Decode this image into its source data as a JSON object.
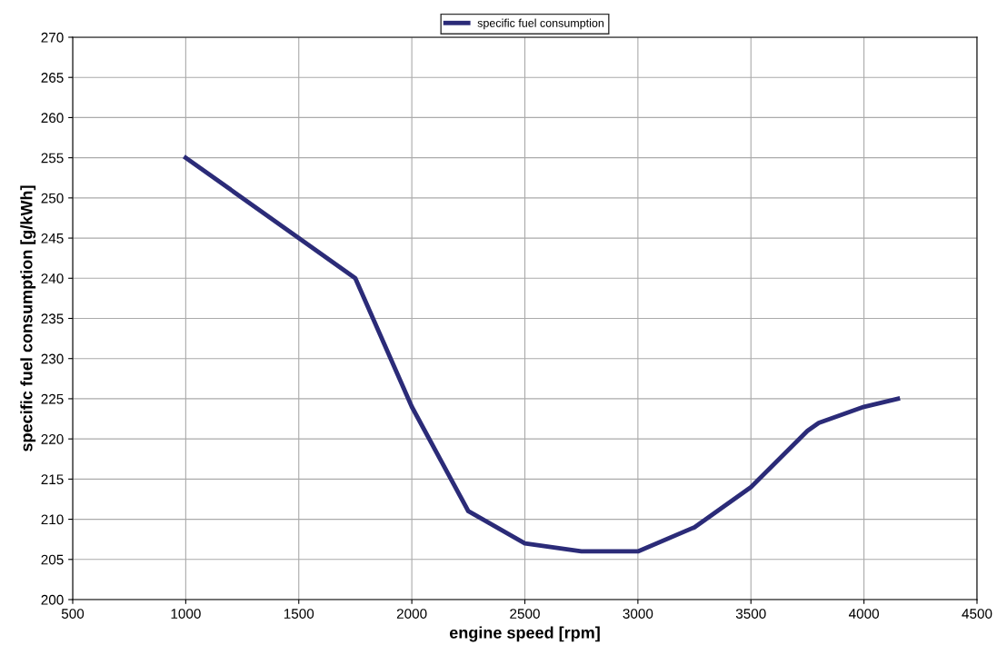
{
  "chart_data": {
    "type": "line",
    "xlabel": "engine speed [rpm]",
    "ylabel": "specific fuel consumption [g/kWh]",
    "x": [
      1000,
      1750,
      2000,
      2250,
      2500,
      2750,
      3000,
      3250,
      3500,
      3750,
      3800,
      4000,
      4150
    ],
    "series": [
      {
        "name": "specific fuel consumption",
        "color": "#2b2b78",
        "values": [
          255,
          240,
          224,
          211,
          207,
          206,
          206,
          209,
          214,
          221,
          222,
          224,
          225
        ]
      }
    ],
    "xlim": [
      500,
      4500
    ],
    "xticks": [
      500,
      1000,
      1500,
      2000,
      2500,
      3000,
      3500,
      4000,
      4500
    ],
    "ylim": [
      200,
      270
    ],
    "yticks": [
      200,
      205,
      210,
      215,
      220,
      225,
      230,
      235,
      240,
      245,
      250,
      255,
      260,
      265,
      270
    ],
    "grid": true,
    "legend": "top",
    "marker": "none",
    "line_style": "solid"
  }
}
